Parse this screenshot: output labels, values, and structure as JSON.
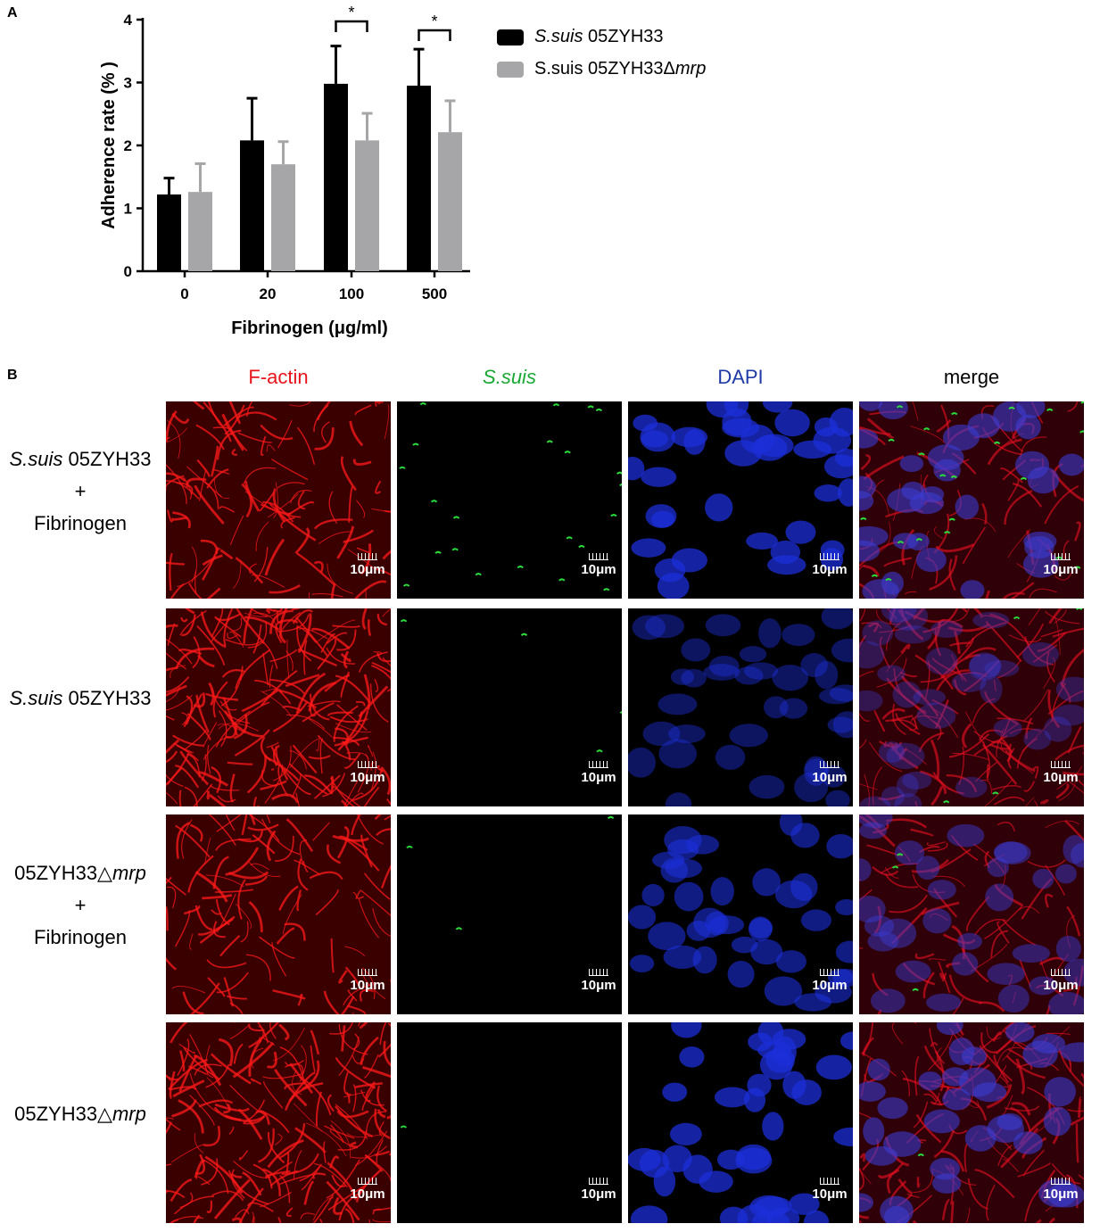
{
  "panel_a_label": "A",
  "panel_b_label": "B",
  "chart_data": {
    "type": "bar",
    "categories": [
      "0",
      "20",
      "100",
      "500"
    ],
    "series": [
      {
        "name": "S.suis 05ZYH33",
        "name_italic": "S.suis",
        "name_rest": " 05ZYH33",
        "color": "#000000",
        "values": [
          1.22,
          2.08,
          2.98,
          2.95
        ],
        "errors": [
          0.26,
          0.67,
          0.6,
          0.58
        ]
      },
      {
        "name": "S.suis 05ZYH33Δmrp",
        "name_plain": "S.suis 05ZYH33Δ",
        "name_italic": "mrp",
        "color": "#a6a6a9",
        "values": [
          1.26,
          1.7,
          2.08,
          2.21
        ],
        "errors": [
          0.45,
          0.36,
          0.43,
          0.5
        ]
      }
    ],
    "xlabel": "Fibrinogen (μg/ml)",
    "ylabel": "Adherence rate (% )",
    "ylim": [
      0,
      4
    ],
    "yticks": [
      0,
      1,
      2,
      3,
      4
    ],
    "ytick_labels": [
      "0",
      "1",
      "2",
      "3",
      "4"
    ],
    "grid": false,
    "legend_position": "right",
    "annotations": [
      {
        "text": "*",
        "category_index": 2
      },
      {
        "text": "*",
        "category_index": 3
      }
    ]
  },
  "panel_b": {
    "columns": [
      {
        "label": "F-actin",
        "color": "#e8141b",
        "italic": false
      },
      {
        "label": "S.suis",
        "color": "#1aa834",
        "italic": true
      },
      {
        "label": "DAPI",
        "color": "#1f3aa6",
        "italic": false
      },
      {
        "label": "merge",
        "color": "#000000",
        "italic": false
      }
    ],
    "rows": [
      {
        "lines": [
          {
            "italic": "S.suis",
            "rest": " 05ZYH33"
          },
          {
            "plain": "+"
          },
          {
            "plain": "Fibrinogen"
          }
        ]
      },
      {
        "lines": [
          {
            "italic": "S.suis",
            "rest": " 05ZYH33"
          }
        ]
      },
      {
        "lines": [
          {
            "plain": "05ZYH33△",
            "italic_after": "mrp"
          },
          {
            "plain": "+"
          },
          {
            "plain": "Fibrinogen"
          }
        ]
      },
      {
        "lines": [
          {
            "plain": "05ZYH33△",
            "italic_after": "mrp"
          }
        ]
      }
    ],
    "scale_bar_label": "10μm"
  }
}
